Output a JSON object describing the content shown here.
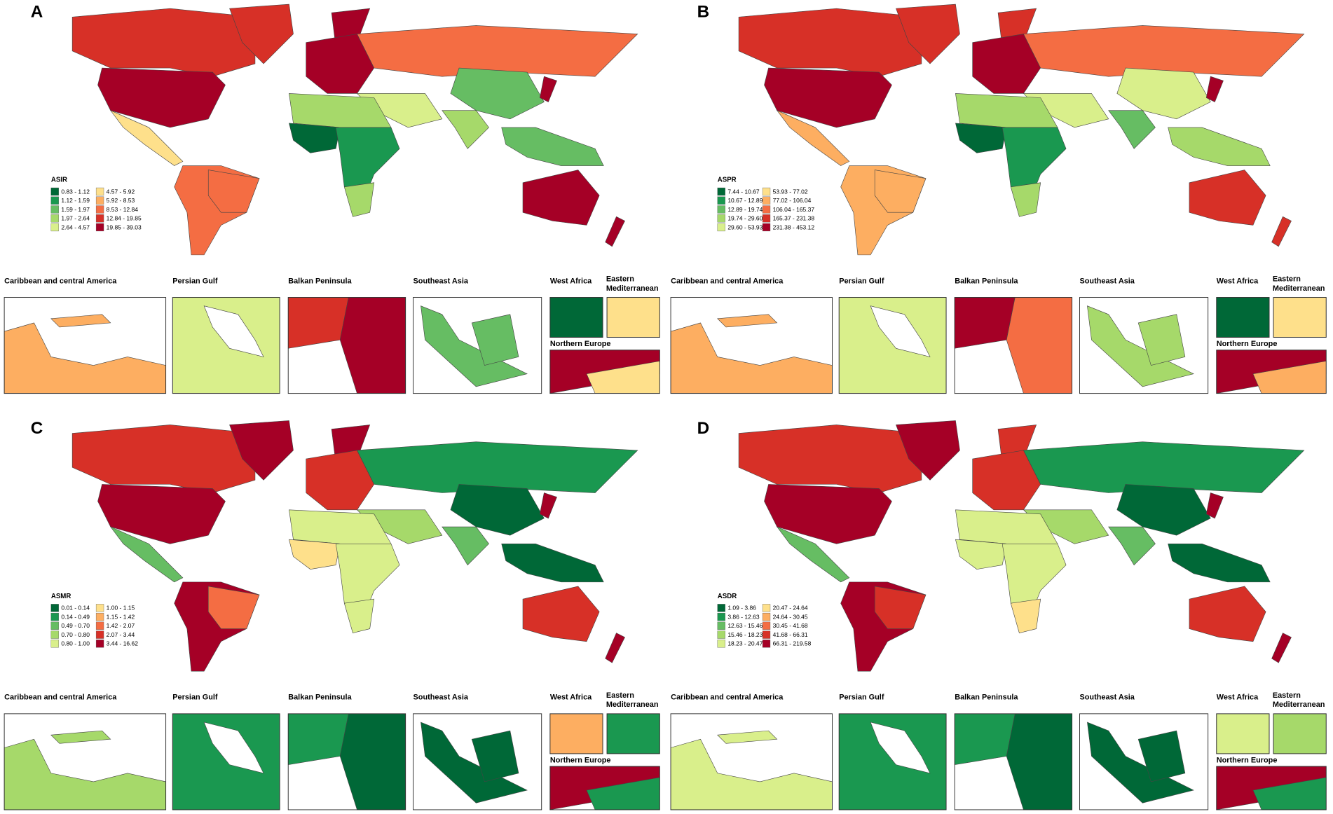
{
  "panels": [
    {
      "letter": "A",
      "legend_title": "ASIR",
      "legend_bins": [
        "0.83 - 1.12",
        "1.12 - 1.59",
        "1.59 - 1.97",
        "1.97 - 2.64",
        "2.64 - 4.57",
        "4.57 - 5.92",
        "5.92 - 8.53",
        "8.53 - 12.84",
        "12.84 - 19.85",
        "19.85 - 39.03"
      ]
    },
    {
      "letter": "B",
      "legend_title": "ASPR",
      "legend_bins": [
        "7.44 - 10.67",
        "10.67 - 12.89",
        "12.89 - 19.74",
        "19.74 - 29.60",
        "29.60 - 53.93",
        "53.93 - 77.02",
        "77.02 - 106.04",
        "106.04 - 165.37",
        "165.37 - 231.38",
        "231.38 - 453.12"
      ]
    },
    {
      "letter": "C",
      "legend_title": "ASMR",
      "legend_bins": [
        "0.01 - 0.14",
        "0.14 - 0.49",
        "0.49 - 0.70",
        "0.70 - 0.80",
        "0.80 - 1.00",
        "1.00 - 1.15",
        "1.15 - 1.42",
        "1.42 - 2.07",
        "2.07 - 3.44",
        "3.44 - 16.62"
      ]
    },
    {
      "letter": "D",
      "legend_title": "ASDR",
      "legend_bins": [
        "1.09 - 3.86",
        "3.86 - 12.63",
        "12.63 - 15.46",
        "15.46 - 18.23",
        "18.23 - 20.47",
        "20.47 - 24.64",
        "24.64 - 30.45",
        "30.45 - 41.68",
        "41.68 - 66.31",
        "66.31 - 219.58"
      ]
    }
  ],
  "insets": [
    "Caribbean and central America",
    "Persian Gulf",
    "Balkan Peninsula",
    "Southeast Asia",
    "West Africa",
    "Eastern Mediterranean",
    "Northern Europe"
  ],
  "colors": [
    "#006837",
    "#1a9850",
    "#66bd63",
    "#a6d96a",
    "#d9ef8b",
    "#fee08b",
    "#fdae61",
    "#f46d43",
    "#d73027",
    "#a50026"
  ]
}
